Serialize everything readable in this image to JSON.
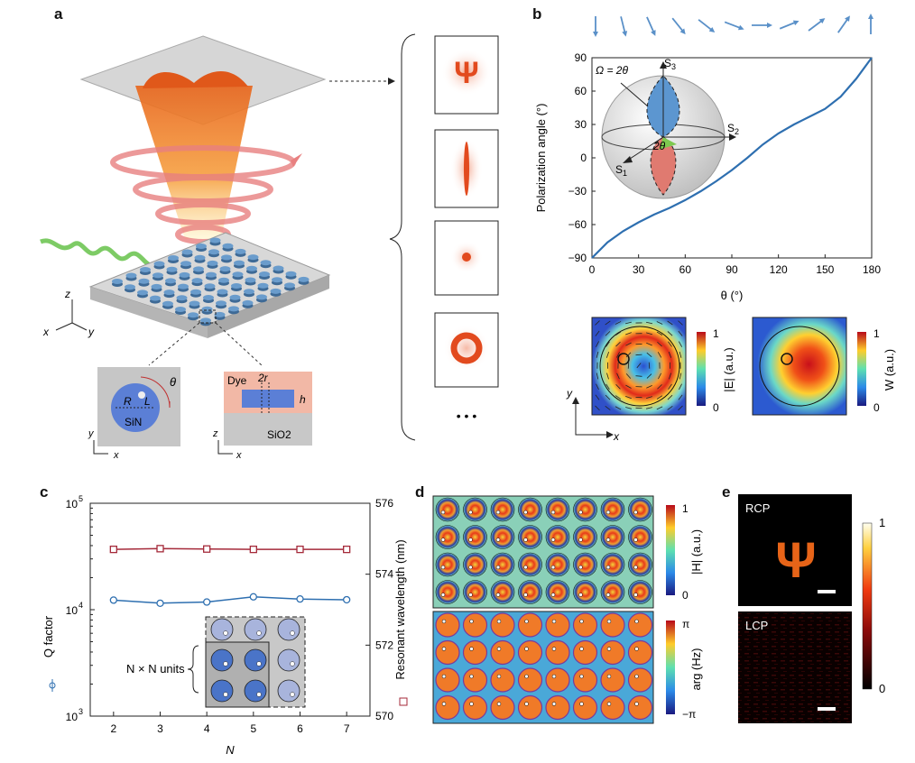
{
  "panels": {
    "a": "a",
    "b": "b",
    "c": "c",
    "d": "d",
    "e": "e"
  },
  "panel_a": {
    "axes": {
      "z": "z",
      "x": "x",
      "y": "y"
    },
    "inset_top": {
      "R": "R",
      "L": "L",
      "material": "SiN",
      "theta": "θ",
      "y": "y",
      "x": "x"
    },
    "inset_side": {
      "dye": "Dye",
      "two_r": "2r",
      "h": "h",
      "substrate": "SiO2",
      "z": "z",
      "x": "x"
    },
    "patterns": [
      "psi",
      "line",
      "dot",
      "ring"
    ],
    "psi_glyph": "Ψ",
    "ellipsis": "• • •"
  },
  "panel_b": {
    "chart_data": {
      "type": "line",
      "xlabel": "θ (°)",
      "ylabel": "Polarization angle (°)",
      "xlim": [
        0,
        180
      ],
      "ylim": [
        -90,
        90
      ],
      "xticks": [
        0,
        30,
        60,
        90,
        120,
        150,
        180
      ],
      "yticks": [
        90,
        60,
        30,
        0,
        -30,
        -60,
        -90
      ],
      "series": [
        {
          "x": [
            0,
            10,
            20,
            30,
            40,
            50,
            60,
            70,
            80,
            90,
            100,
            110,
            120,
            130,
            140,
            150,
            160,
            170,
            180
          ],
          "values": [
            -90,
            -76,
            -66,
            -58,
            -51,
            -45,
            -38,
            -30,
            -21,
            -11,
            0,
            12,
            22,
            30,
            37,
            44,
            55,
            71,
            90
          ]
        }
      ]
    },
    "sphere": {
      "omega": "Ω = 2θ",
      "s1": "S",
      "s1_sub": "1",
      "s2": "S",
      "s2_sub": "2",
      "s3": "S",
      "s3_sub": "3",
      "two_theta": "2θ"
    },
    "arrow_angles": [
      -90,
      -76,
      -66,
      -51,
      -38,
      -21,
      0,
      22,
      37,
      55,
      90
    ],
    "field_E": {
      "label": "|E| (a.u.)",
      "max": "1",
      "min": "0"
    },
    "field_W": {
      "label": "W (a.u.)",
      "max": "1",
      "min": "0"
    },
    "axes": {
      "y": "y",
      "x": "x"
    }
  },
  "panel_c": {
    "chart_data": {
      "type": "line",
      "xlabel": "N",
      "ylabel_left": "Q factor",
      "ylabel_right": "Resonant wavelength (nm)",
      "xlim": [
        1.5,
        7.5
      ],
      "ylim_left": [
        1000,
        100000
      ],
      "yscale_left": "log",
      "ylim_right": [
        570,
        576
      ],
      "xticks": [
        2,
        3,
        4,
        5,
        6,
        7
      ],
      "yticks_left": [
        "10",
        "10",
        "10"
      ],
      "yticks_left_exp": [
        "5",
        "4",
        "3"
      ],
      "yticks_right": [
        576,
        574,
        572,
        570
      ],
      "series": [
        {
          "axis": "left",
          "x": [
            2,
            3,
            4,
            5,
            6,
            7
          ],
          "values": [
            12300,
            11500,
            11800,
            13200,
            12600,
            12400
          ],
          "color": "#2e6fb0"
        },
        {
          "axis": "right",
          "x": [
            2,
            3,
            4,
            5,
            6,
            7
          ],
          "values": [
            574.7,
            574.72,
            574.71,
            574.7,
            574.7,
            574.7
          ],
          "color": "#a52a3a"
        }
      ]
    },
    "units_label": "N × N units"
  },
  "panel_d": {
    "H_label": "|H| (a.u.)",
    "H_max": "1",
    "H_min": "0",
    "arg_label": "arg (Hz)",
    "arg_max": "π",
    "arg_min": "−π"
  },
  "panel_e": {
    "rcp": "RCP",
    "lcp": "LCP",
    "cb_max": "1",
    "cb_min": "0",
    "psi_glyph": "Ψ"
  }
}
